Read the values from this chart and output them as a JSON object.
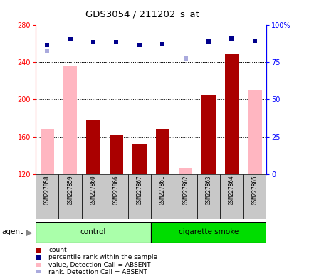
{
  "title": "GDS3054 / 211202_s_at",
  "samples": [
    "GSM227858",
    "GSM227859",
    "GSM227860",
    "GSM227866",
    "GSM227867",
    "GSM227861",
    "GSM227862",
    "GSM227863",
    "GSM227864",
    "GSM227865"
  ],
  "count_values": [
    null,
    null,
    178,
    162,
    152,
    168,
    null,
    205,
    248,
    null
  ],
  "absent_value_bars": [
    168,
    235,
    null,
    null,
    null,
    null,
    126,
    null,
    null,
    210
  ],
  "percentile_rank_left": [
    258,
    264,
    261,
    261,
    258,
    259,
    null,
    262,
    265,
    263
  ],
  "absent_rank_left": [
    252,
    264,
    null,
    null,
    null,
    null,
    244,
    null,
    null,
    263
  ],
  "ylim_left": [
    120,
    280
  ],
  "yticks_left": [
    120,
    160,
    200,
    240,
    280
  ],
  "yticks_right": [
    0,
    25,
    50,
    75,
    100
  ],
  "bar_color_count": "#AA0000",
  "bar_color_absent": "#FFB6C1",
  "dot_color_present": "#00008B",
  "dot_color_absent": "#AAAADD",
  "bg_xtick": "#C8C8C8",
  "control_color_light": "#AAFFAA",
  "control_color_dark": "#00DD00",
  "legend_items": [
    {
      "color": "#AA0000",
      "label": "count"
    },
    {
      "color": "#00008B",
      "label": "percentile rank within the sample"
    },
    {
      "color": "#FFB6C1",
      "label": "value, Detection Call = ABSENT"
    },
    {
      "color": "#AAAADD",
      "label": "rank, Detection Call = ABSENT"
    }
  ]
}
